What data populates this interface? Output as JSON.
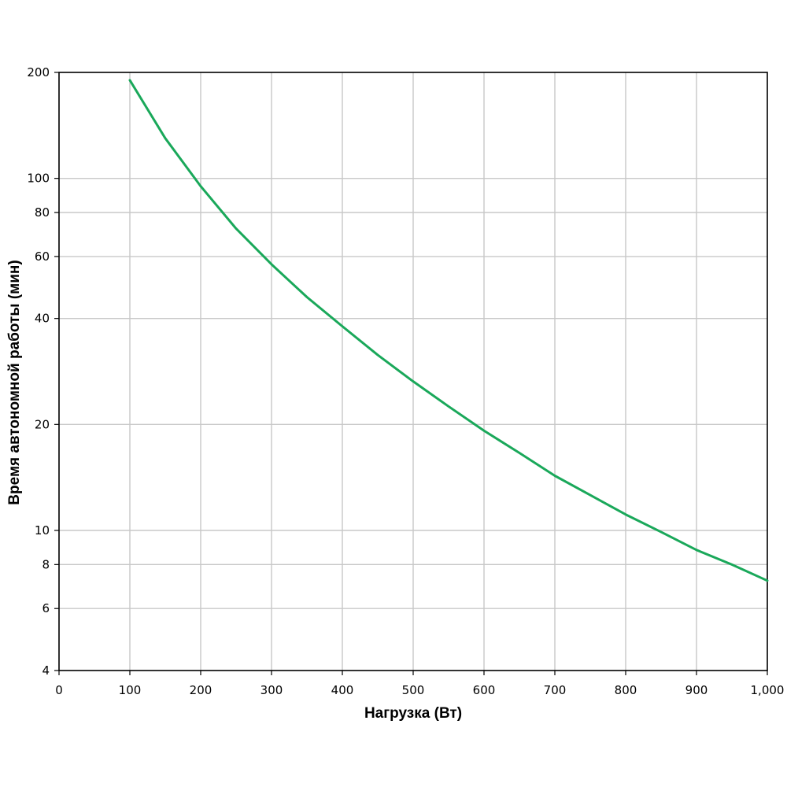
{
  "chart_data": {
    "type": "line",
    "title": "",
    "xlabel": "Нагрузка (Вт)",
    "ylabel": "Время автономной работы (мин)",
    "xlim": [
      0,
      1000
    ],
    "ylim": [
      4,
      200
    ],
    "yscale": "log",
    "grid": true,
    "x_ticks": [
      0,
      100,
      200,
      300,
      400,
      500,
      600,
      700,
      800,
      900,
      1000
    ],
    "x_tick_labels": [
      "0",
      "100",
      "200",
      "300",
      "400",
      "500",
      "600",
      "700",
      "800",
      "900",
      "1,000"
    ],
    "y_ticks": [
      4,
      6,
      8,
      10,
      20,
      40,
      60,
      80,
      100,
      200
    ],
    "y_tick_labels": [
      "4",
      "6",
      "8",
      "10",
      "20",
      "40",
      "60",
      "80",
      "100",
      "200"
    ],
    "series": [
      {
        "color": "#1aa85a",
        "x": [
          100,
          150,
          200,
          250,
          300,
          350,
          400,
          450,
          500,
          550,
          600,
          650,
          700,
          750,
          800,
          850,
          900,
          950,
          1000
        ],
        "y": [
          190,
          130,
          95,
          72,
          57,
          46,
          38,
          31.5,
          26.5,
          22.5,
          19.2,
          16.6,
          14.3,
          12.6,
          11.1,
          9.9,
          8.8,
          8.0,
          7.2
        ]
      }
    ]
  }
}
